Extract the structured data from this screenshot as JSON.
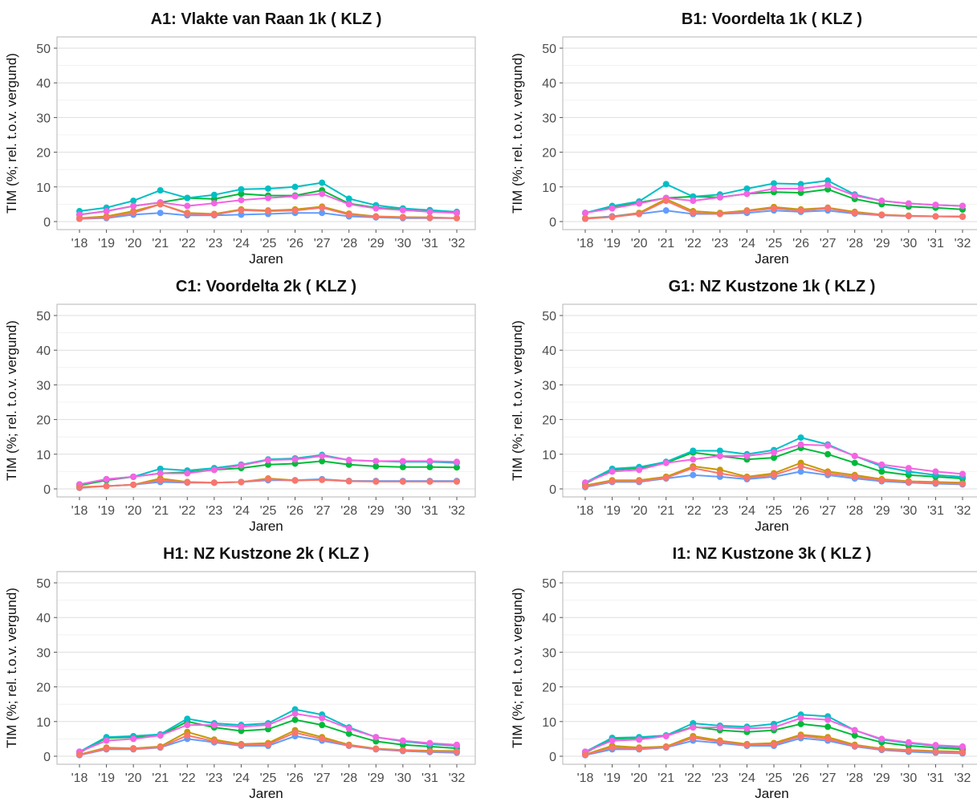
{
  "chart_data": [
    {
      "type": "line",
      "title": "A1: Vlakte van Raan 1k  ( KLZ )",
      "xlabel": "Jaren",
      "ylabel": "TIM (%; rel. t.o.v. vergund)",
      "categories": [
        "'18",
        "'19",
        "'20",
        "'21",
        "'22",
        "'23",
        "'24",
        "'25",
        "'26",
        "'27",
        "'28",
        "'29",
        "'30",
        "'31",
        "'32"
      ],
      "ylim": [
        0,
        50
      ],
      "yticks": [
        0,
        10,
        20,
        30,
        40,
        50
      ],
      "grid": true,
      "series": [
        {
          "color": "#c49a00",
          "values": [
            1.0,
            1.5,
            3.0,
            5.0,
            2.5,
            2.2,
            3.5,
            3.2,
            3.5,
            4.3,
            2.3,
            1.5,
            1.3,
            1.2,
            1.0
          ]
        },
        {
          "color": "#00ba38",
          "values": [
            2.0,
            3.0,
            4.5,
            5.5,
            6.8,
            6.5,
            8.0,
            7.5,
            7.5,
            9.0,
            5.2,
            4.0,
            3.5,
            3.0,
            2.5
          ]
        },
        {
          "color": "#00bfc4",
          "values": [
            3.0,
            4.0,
            6.0,
            9.0,
            6.8,
            7.7,
            9.3,
            9.5,
            10.0,
            11.2,
            6.6,
            4.7,
            3.8,
            3.3,
            2.8
          ]
        },
        {
          "color": "#619cff",
          "values": [
            0.8,
            1.0,
            2.0,
            2.5,
            1.8,
            1.8,
            2.0,
            2.2,
            2.5,
            2.5,
            1.5,
            1.2,
            1.0,
            1.0,
            1.0
          ]
        },
        {
          "color": "#f564e3",
          "values": [
            2.0,
            3.0,
            4.5,
            5.5,
            4.5,
            5.3,
            6.2,
            6.8,
            7.3,
            8.0,
            5.0,
            3.8,
            3.3,
            2.8,
            2.5
          ]
        },
        {
          "color": "#f8766d",
          "values": [
            0.8,
            1.2,
            2.5,
            5.0,
            2.3,
            2.0,
            3.3,
            3.0,
            3.2,
            4.0,
            2.0,
            1.4,
            1.2,
            1.1,
            1.0
          ]
        }
      ]
    },
    {
      "type": "line",
      "title": "B1: Voordelta 1k  ( KLZ )",
      "xlabel": "Jaren",
      "ylabel": "TIM (%; rel. t.o.v. vergund)",
      "categories": [
        "'18",
        "'19",
        "'20",
        "'21",
        "'22",
        "'23",
        "'24",
        "'25",
        "'26",
        "'27",
        "'28",
        "'29",
        "'30",
        "'31",
        "'32"
      ],
      "ylim": [
        0,
        50
      ],
      "yticks": [
        0,
        10,
        20,
        30,
        40,
        50
      ],
      "grid": true,
      "series": [
        {
          "color": "#c49a00",
          "values": [
            1.0,
            1.5,
            2.5,
            6.5,
            3.0,
            2.5,
            3.2,
            4.2,
            3.5,
            4.0,
            2.8,
            2.0,
            1.7,
            1.5,
            1.5
          ]
        },
        {
          "color": "#00ba38",
          "values": [
            2.5,
            4.0,
            5.5,
            6.8,
            7.2,
            7.0,
            8.0,
            8.5,
            8.3,
            9.3,
            6.5,
            5.0,
            4.3,
            4.0,
            3.5
          ]
        },
        {
          "color": "#00bfc4",
          "values": [
            2.5,
            4.5,
            5.8,
            10.8,
            7.2,
            7.8,
            9.5,
            11.0,
            10.8,
            11.8,
            7.8,
            6.0,
            5.2,
            4.8,
            4.5
          ]
        },
        {
          "color": "#619cff",
          "values": [
            0.8,
            1.5,
            2.2,
            3.2,
            2.2,
            2.2,
            2.5,
            3.2,
            2.8,
            3.2,
            2.3,
            1.8,
            1.6,
            1.5,
            1.4
          ]
        },
        {
          "color": "#f564e3",
          "values": [
            2.5,
            3.8,
            5.2,
            6.8,
            6.0,
            7.0,
            8.0,
            9.5,
            9.5,
            10.5,
            7.5,
            6.0,
            5.2,
            4.8,
            4.5
          ]
        },
        {
          "color": "#f8766d",
          "values": [
            0.8,
            1.3,
            2.2,
            6.0,
            2.5,
            2.2,
            3.0,
            3.8,
            3.2,
            3.8,
            2.5,
            1.9,
            1.6,
            1.5,
            1.4
          ]
        }
      ]
    },
    {
      "type": "line",
      "title": "C1: Voordelta 2k  ( KLZ )",
      "xlabel": "Jaren",
      "ylabel": "TIM (%; rel. t.o.v. vergund)",
      "categories": [
        "'18",
        "'19",
        "'20",
        "'21",
        "'22",
        "'23",
        "'24",
        "'25",
        "'26",
        "'27",
        "'28",
        "'29",
        "'30",
        "'31",
        "'32"
      ],
      "ylim": [
        0,
        50
      ],
      "yticks": [
        0,
        10,
        20,
        30,
        40,
        50
      ],
      "grid": true,
      "series": [
        {
          "color": "#c49a00",
          "values": [
            0.5,
            0.8,
            1.2,
            3.0,
            2.0,
            1.8,
            2.0,
            3.0,
            2.5,
            2.7,
            2.3,
            2.2,
            2.2,
            2.2,
            2.2
          ]
        },
        {
          "color": "#00ba38",
          "values": [
            1.0,
            2.5,
            3.5,
            4.5,
            4.8,
            5.5,
            6.0,
            7.0,
            7.3,
            8.0,
            7.0,
            6.5,
            6.3,
            6.3,
            6.2
          ]
        },
        {
          "color": "#00bfc4",
          "values": [
            1.3,
            2.8,
            3.5,
            5.8,
            5.3,
            6.0,
            7.0,
            8.5,
            8.8,
            9.8,
            8.3,
            8.0,
            7.8,
            7.8,
            7.5
          ]
        },
        {
          "color": "#619cff",
          "values": [
            0.3,
            0.8,
            1.2,
            2.0,
            1.8,
            1.8,
            2.0,
            2.5,
            2.5,
            2.8,
            2.3,
            2.3,
            2.3,
            2.3,
            2.3
          ]
        },
        {
          "color": "#f564e3",
          "values": [
            1.3,
            2.8,
            3.5,
            4.5,
            4.5,
            5.5,
            6.8,
            8.3,
            8.5,
            9.5,
            8.3,
            8.0,
            8.0,
            8.0,
            7.8
          ]
        },
        {
          "color": "#f8766d",
          "values": [
            0.4,
            0.8,
            1.2,
            2.5,
            1.9,
            1.8,
            2.0,
            2.8,
            2.4,
            2.6,
            2.2,
            2.1,
            2.1,
            2.1,
            2.1
          ]
        }
      ]
    },
    {
      "type": "line",
      "title": "G1: NZ Kustzone 1k  ( KLZ )",
      "xlabel": "Jaren",
      "ylabel": "TIM (%; rel. t.o.v. vergund)",
      "categories": [
        "'18",
        "'19",
        "'20",
        "'21",
        "'22",
        "'23",
        "'24",
        "'25",
        "'26",
        "'27",
        "'28",
        "'29",
        "'30",
        "'31",
        "'32"
      ],
      "ylim": [
        0,
        50
      ],
      "yticks": [
        0,
        10,
        20,
        30,
        40,
        50
      ],
      "grid": true,
      "series": [
        {
          "color": "#c49a00",
          "values": [
            1.0,
            2.5,
            2.5,
            3.5,
            6.5,
            5.5,
            3.5,
            4.5,
            7.5,
            5.0,
            4.0,
            2.8,
            2.2,
            2.0,
            1.8
          ]
        },
        {
          "color": "#00ba38",
          "values": [
            1.5,
            5.5,
            6.0,
            7.5,
            10.5,
            9.5,
            8.5,
            9.0,
            11.8,
            10.0,
            7.5,
            5.0,
            4.0,
            3.5,
            3.0
          ]
        },
        {
          "color": "#00bfc4",
          "values": [
            1.8,
            5.8,
            6.3,
            7.8,
            11.0,
            11.0,
            10.0,
            11.2,
            14.8,
            12.8,
            9.5,
            6.5,
            5.0,
            4.0,
            3.5
          ]
        },
        {
          "color": "#619cff",
          "values": [
            0.5,
            2.0,
            2.0,
            3.0,
            4.0,
            3.5,
            2.8,
            3.5,
            5.0,
            4.0,
            3.0,
            2.2,
            1.8,
            1.5,
            1.3
          ]
        },
        {
          "color": "#f564e3",
          "values": [
            1.8,
            5.0,
            5.5,
            7.5,
            8.5,
            9.5,
            9.5,
            10.5,
            12.8,
            12.5,
            9.5,
            7.0,
            6.0,
            5.0,
            4.3
          ]
        },
        {
          "color": "#f8766d",
          "values": [
            0.7,
            2.2,
            2.2,
            3.2,
            6.0,
            4.5,
            3.2,
            4.0,
            6.5,
            4.5,
            3.5,
            2.5,
            2.0,
            1.7,
            1.5
          ]
        }
      ]
    },
    {
      "type": "line",
      "title": "H1: NZ Kustzone 2k  ( KLZ )",
      "xlabel": "Jaren",
      "ylabel": "TIM (%; rel. t.o.v. vergund)",
      "categories": [
        "'18",
        "'19",
        "'20",
        "'21",
        "'22",
        "'23",
        "'24",
        "'25",
        "'26",
        "'27",
        "'28",
        "'29",
        "'30",
        "'31",
        "'32"
      ],
      "ylim": [
        0,
        50
      ],
      "yticks": [
        0,
        10,
        20,
        30,
        40,
        50
      ],
      "grid": true,
      "series": [
        {
          "color": "#c49a00",
          "values": [
            0.5,
            2.5,
            2.3,
            2.8,
            7.0,
            4.8,
            3.5,
            3.8,
            7.5,
            5.5,
            3.3,
            2.2,
            1.8,
            1.6,
            1.5
          ]
        },
        {
          "color": "#00ba38",
          "values": [
            1.0,
            5.3,
            5.5,
            6.0,
            10.0,
            8.3,
            7.3,
            7.8,
            10.5,
            9.0,
            6.5,
            4.3,
            3.3,
            2.8,
            2.3
          ]
        },
        {
          "color": "#00bfc4",
          "values": [
            1.3,
            5.5,
            5.8,
            6.3,
            10.8,
            9.5,
            9.0,
            9.5,
            13.5,
            12.0,
            8.3,
            5.5,
            4.3,
            3.5,
            3.0
          ]
        },
        {
          "color": "#619cff",
          "values": [
            0.3,
            2.0,
            2.0,
            2.5,
            5.0,
            4.0,
            3.0,
            3.0,
            5.8,
            4.5,
            3.0,
            2.0,
            1.5,
            1.2,
            1.0
          ]
        },
        {
          "color": "#f564e3",
          "values": [
            1.3,
            4.5,
            5.0,
            6.0,
            9.0,
            9.0,
            8.5,
            9.0,
            12.3,
            11.0,
            8.0,
            5.5,
            4.5,
            3.8,
            3.3
          ]
        },
        {
          "color": "#f8766d",
          "values": [
            0.4,
            2.2,
            2.1,
            2.6,
            6.0,
            4.3,
            3.2,
            3.4,
            6.8,
            5.0,
            3.1,
            2.1,
            1.7,
            1.4,
            1.3
          ]
        }
      ]
    },
    {
      "type": "line",
      "title": "I1: NZ Kustzone 3k  ( KLZ )",
      "xlabel": "Jaren",
      "ylabel": "TIM (%; rel. t.o.v. vergund)",
      "categories": [
        "'18",
        "'19",
        "'20",
        "'21",
        "'22",
        "'23",
        "'24",
        "'25",
        "'26",
        "'27",
        "'28",
        "'29",
        "'30",
        "'31",
        "'32"
      ],
      "ylim": [
        0,
        50
      ],
      "yticks": [
        0,
        10,
        20,
        30,
        40,
        50
      ],
      "grid": true,
      "series": [
        {
          "color": "#c49a00",
          "values": [
            0.5,
            3.0,
            2.5,
            2.8,
            5.8,
            4.5,
            3.5,
            3.8,
            6.2,
            5.5,
            3.3,
            2.2,
            1.8,
            1.5,
            1.3
          ]
        },
        {
          "color": "#00ba38",
          "values": [
            1.0,
            5.0,
            5.3,
            6.0,
            8.5,
            7.5,
            7.0,
            7.5,
            9.3,
            8.5,
            6.0,
            4.0,
            3.0,
            2.5,
            2.0
          ]
        },
        {
          "color": "#00bfc4",
          "values": [
            1.3,
            5.3,
            5.5,
            6.0,
            9.5,
            8.8,
            8.5,
            9.3,
            12.0,
            11.5,
            7.5,
            4.8,
            3.8,
            3.0,
            2.5
          ]
        },
        {
          "color": "#619cff",
          "values": [
            0.3,
            2.0,
            2.0,
            2.5,
            4.5,
            3.8,
            3.0,
            3.0,
            5.2,
            4.5,
            2.8,
            1.8,
            1.3,
            1.0,
            0.8
          ]
        },
        {
          "color": "#f564e3",
          "values": [
            1.3,
            4.5,
            4.8,
            5.8,
            8.3,
            8.3,
            8.0,
            8.3,
            11.0,
            10.5,
            7.5,
            5.0,
            4.0,
            3.2,
            2.8
          ]
        },
        {
          "color": "#f8766d",
          "values": [
            0.4,
            2.5,
            2.2,
            2.6,
            5.3,
            4.2,
            3.2,
            3.4,
            5.8,
            5.0,
            3.0,
            2.0,
            1.6,
            1.3,
            1.1
          ]
        }
      ]
    }
  ]
}
